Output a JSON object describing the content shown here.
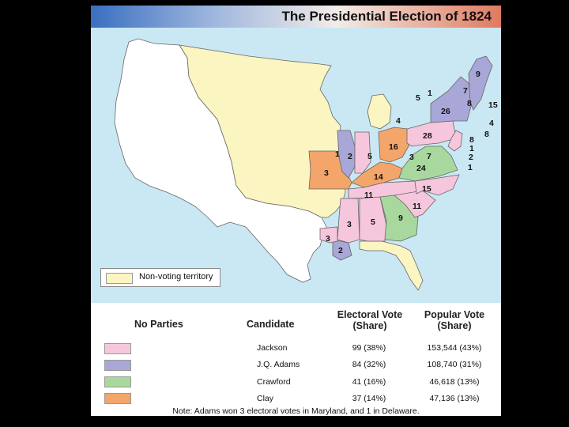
{
  "title": "The Presidential Election of 1824",
  "legend": {
    "label": "Non-voting territory"
  },
  "colors": {
    "jackson": "#f6c6dc",
    "adams": "#a9a6d8",
    "crawford": "#a9d89e",
    "clay": "#f4a56a",
    "non_voting": "#fbf5c2",
    "water": "#c9e8f4"
  },
  "map_numbers": [
    "9",
    "7",
    "8",
    "15",
    "4",
    "8",
    "5",
    "1",
    "26",
    "28",
    "8",
    "1",
    "2",
    "1",
    "4",
    "16",
    "3",
    "7",
    "24",
    "1",
    "2",
    "5",
    "3",
    "14",
    "11",
    "15",
    "11",
    "9",
    "3",
    "5",
    "3",
    "2"
  ],
  "table": {
    "headers": {
      "parties": "No Parties",
      "candidate": "Candidate",
      "electoral_line1": "Electoral Vote",
      "electoral_line2": "(Share)",
      "popular_line1": "Popular Vote",
      "popular_line2": "(Share)"
    },
    "rows": [
      {
        "candidate": "Jackson",
        "electoral": "99 (38%)",
        "popular": "153,544 (43%)",
        "color": "#f6c6dc"
      },
      {
        "candidate": "J.Q. Adams",
        "electoral": "84 (32%)",
        "popular": "108,740 (31%)",
        "color": "#a9a6d8"
      },
      {
        "candidate": "Crawford",
        "electoral": "41 (16%)",
        "popular": "46,618 (13%)",
        "color": "#a9d89e"
      },
      {
        "candidate": "Clay",
        "electoral": "37 (14%)",
        "popular": "47,136 (13%)",
        "color": "#f4a56a"
      }
    ],
    "note": "Note: Adams won 3 electoral votes in Maryland, and 1 in Delaware."
  }
}
